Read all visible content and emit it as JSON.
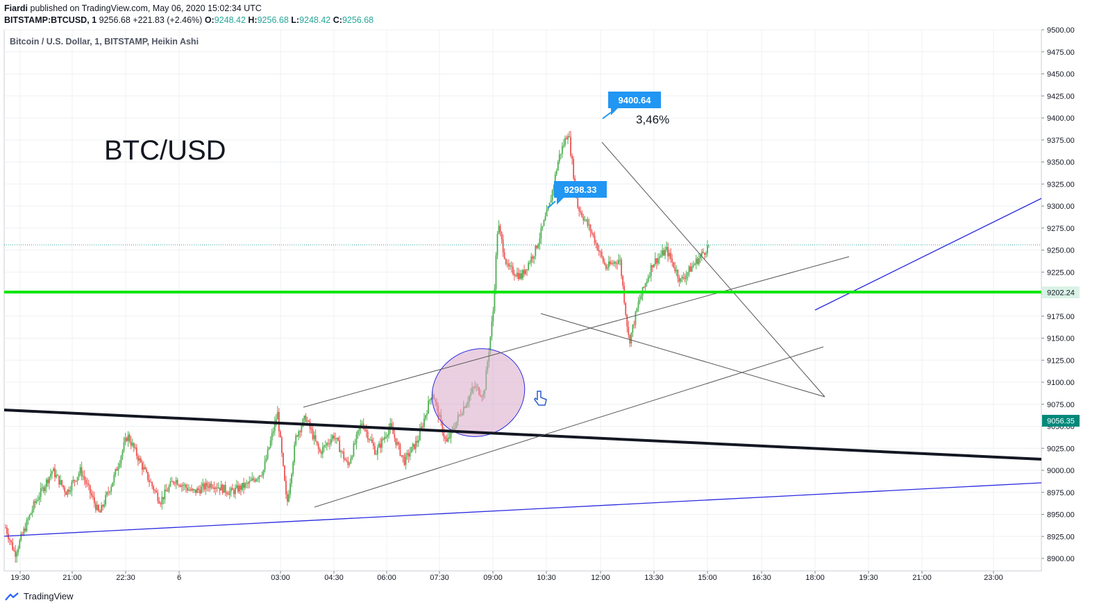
{
  "header": {
    "author": "Fiardi",
    "published_text": "published on TradingView.com, May 06, 2020 15:02:34 UTC",
    "symbol": "BITSTAMP:BTCUSD, 1",
    "last": "9256.68",
    "change": "+221.83 (+2.46%)",
    "o_label": "O:",
    "o_value": "9248.42",
    "h_label": "H:",
    "h_value": "9256.68",
    "l_label": "L:",
    "l_value": "9248.42",
    "c_label": "C:",
    "c_value": "9256.68"
  },
  "chart_title": "Bitcoin / U.S. Dollar, 1, BITSTAMP, Heikin Ashi",
  "big_label": "BTC/USD",
  "annotations": {
    "high_label": "9400.64",
    "mid_label": "9298.33",
    "percent": "3,46%"
  },
  "price_badges": {
    "green_level": "9202.24",
    "teal_level": "9056.35"
  },
  "footer": {
    "brand": "TradingView"
  },
  "colors": {
    "up": "#26a69a",
    "up_candle": "#4caf50",
    "down_candle": "#ef5350",
    "green_line": "#00e600",
    "blue_line": "#2929e0",
    "badge_blue": "#2196f3",
    "teal_badge": "#00897b",
    "ellipse_fill": "#d8a8c8"
  },
  "chart_data": {
    "type": "candlestick",
    "title": "Bitcoin / U.S. Dollar, 1, BITSTAMP, Heikin Ashi",
    "y_range": [
      8890,
      9500
    ],
    "y_ticks": [
      "9500.00",
      "9475.00",
      "9450.00",
      "9425.00",
      "9400.00",
      "9375.00",
      "9350.00",
      "9325.00",
      "9300.00",
      "9275.00",
      "9250.00",
      "9225.00",
      "9200.00",
      "9175.00",
      "9150.00",
      "9125.00",
      "9100.00",
      "9075.00",
      "9050.00",
      "9025.00",
      "9000.00",
      "8975.00",
      "8950.00",
      "8925.00",
      "8900.00"
    ],
    "x_ticks": [
      "19:30",
      "21:00",
      "22:30",
      "6",
      "03:00",
      "04:30",
      "06:00",
      "07:30",
      "09:00",
      "10:30",
      "12:00",
      "13:30",
      "15:00",
      "16:30",
      "18:00",
      "19:30",
      "21:00",
      "23:00"
    ],
    "price_path": [
      [
        0,
        8935
      ],
      [
        0.02,
        8905
      ],
      [
        0.06,
        8960
      ],
      [
        0.1,
        9000
      ],
      [
        0.13,
        8975
      ],
      [
        0.16,
        9000
      ],
      [
        0.2,
        8950
      ],
      [
        0.23,
        8990
      ],
      [
        0.26,
        9040
      ],
      [
        0.3,
        8995
      ],
      [
        0.33,
        8965
      ],
      [
        0.36,
        8990
      ],
      [
        0.4,
        8975
      ],
      [
        0.44,
        8985
      ],
      [
        0.48,
        8975
      ],
      [
        0.52,
        8985
      ],
      [
        0.55,
        9000
      ],
      [
        0.58,
        9065
      ],
      [
        0.6,
        8960
      ],
      [
        0.62,
        9040
      ],
      [
        0.64,
        9060
      ],
      [
        0.67,
        9020
      ],
      [
        0.7,
        9040
      ],
      [
        0.73,
        9005
      ],
      [
        0.76,
        9055
      ],
      [
        0.79,
        9020
      ],
      [
        0.82,
        9050
      ],
      [
        0.85,
        9010
      ],
      [
        0.88,
        9035
      ],
      [
        0.91,
        9090
      ],
      [
        0.94,
        9030
      ],
      [
        0.97,
        9065
      ],
      [
        1.0,
        9095
      ],
      [
        1.02,
        9085
      ],
      [
        1.04,
        9180
      ],
      [
        1.05,
        9280
      ],
      [
        1.07,
        9230
      ],
      [
        1.1,
        9220
      ],
      [
        1.13,
        9250
      ],
      [
        1.16,
        9300
      ],
      [
        1.18,
        9355
      ],
      [
        1.2,
        9385
      ],
      [
        1.22,
        9300
      ],
      [
        1.25,
        9270
      ],
      [
        1.28,
        9230
      ],
      [
        1.31,
        9240
      ],
      [
        1.33,
        9145
      ],
      [
        1.35,
        9190
      ],
      [
        1.38,
        9235
      ],
      [
        1.41,
        9250
      ],
      [
        1.44,
        9215
      ],
      [
        1.47,
        9235
      ],
      [
        1.5,
        9255
      ]
    ]
  }
}
